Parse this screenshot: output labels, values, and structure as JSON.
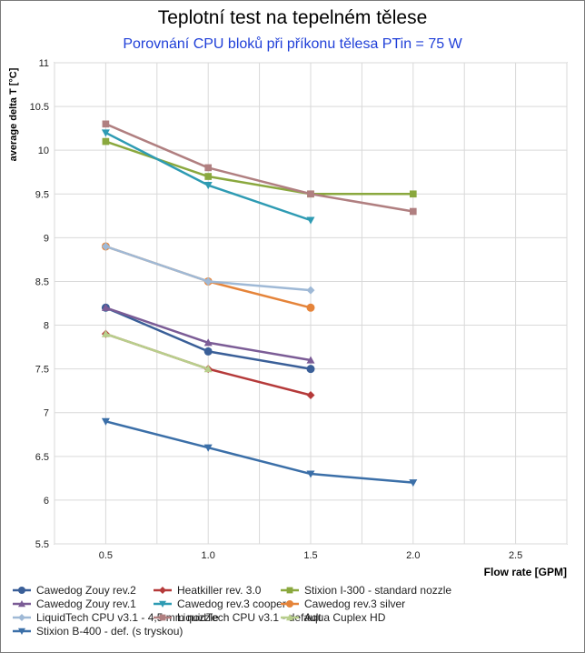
{
  "title": "Teplotní test na tepelném tělese",
  "subtitle": "Porovnání CPU bloků při příkonu tělesa PTin = 75 W",
  "chart_data": {
    "type": "line",
    "title": "Teplotní test na tepelném tělese",
    "subtitle": "Porovnání CPU bloků při příkonu tělesa PTin = 75 W",
    "xlabel": "Flow rate [GPM]",
    "ylabel": "average delta T [°C]",
    "xlim": [
      0.25,
      2.75
    ],
    "ylim": [
      5.5,
      11
    ],
    "xticks": [
      "0.5",
      "1.0",
      "1.5",
      "2.0",
      "2.5"
    ],
    "yticks": [
      "5.5",
      "6",
      "6.5",
      "7",
      "7.5",
      "8",
      "8.5",
      "9",
      "9.5",
      "10",
      "10.5",
      "11"
    ],
    "grid": "both",
    "legend_position": "bottom",
    "series": [
      {
        "name": "Cawedog Zouy rev.2",
        "color": "#3a5f98",
        "marker": "circle",
        "x": [
          0.5,
          1.0,
          1.5
        ],
        "y": [
          8.2,
          7.7,
          7.5
        ]
      },
      {
        "name": "Heatkiller rev. 3.0",
        "color": "#b53a3a",
        "marker": "diamond",
        "x": [
          0.5,
          1.0,
          1.5
        ],
        "y": [
          7.9,
          7.5,
          7.2
        ]
      },
      {
        "name": "Stixion I-300 - standard nozzle",
        "color": "#8aa83e",
        "marker": "square",
        "x": [
          0.5,
          1.0,
          1.5,
          2.0
        ],
        "y": [
          10.1,
          9.7,
          9.5,
          9.5
        ]
      },
      {
        "name": "Cawedog Zouy rev.1",
        "color": "#7b5c96",
        "marker": "triangle-up",
        "x": [
          0.5,
          1.0,
          1.5
        ],
        "y": [
          8.2,
          7.8,
          7.6
        ]
      },
      {
        "name": "Cawedog rev.3 cooper",
        "color": "#2e9bb3",
        "marker": "triangle-down",
        "x": [
          0.5,
          1.0,
          1.5
        ],
        "y": [
          10.2,
          9.6,
          9.2
        ]
      },
      {
        "name": "Cawedog rev.3 silver",
        "color": "#e5843a",
        "marker": "circle",
        "x": [
          0.5,
          1.0,
          1.5
        ],
        "y": [
          8.9,
          8.5,
          8.2
        ]
      },
      {
        "name": "LiquidTech CPU v3.1 - 4,5 mm nozzle",
        "color": "#9fb9d6",
        "marker": "diamond",
        "x": [
          0.5,
          1.0,
          1.5
        ],
        "y": [
          8.9,
          8.5,
          8.4
        ]
      },
      {
        "name": "LiquidTech CPU v3.1 - default",
        "color": "#b07f80",
        "marker": "square",
        "x": [
          0.5,
          1.0,
          1.5,
          2.0
        ],
        "y": [
          10.3,
          9.8,
          9.5,
          9.3
        ]
      },
      {
        "name": "Aqua Cuplex HD",
        "color": "#b8cf8c",
        "marker": "triangle-up",
        "x": [
          0.5,
          1.0
        ],
        "y": [
          7.9,
          7.5
        ]
      },
      {
        "name": "Stixion B-400 - def. (s tryskou)",
        "color": "#3b6fa8",
        "marker": "triangle-down",
        "x": [
          0.5,
          1.0,
          1.5,
          2.0
        ],
        "y": [
          6.9,
          6.6,
          6.3,
          6.2
        ]
      }
    ]
  }
}
